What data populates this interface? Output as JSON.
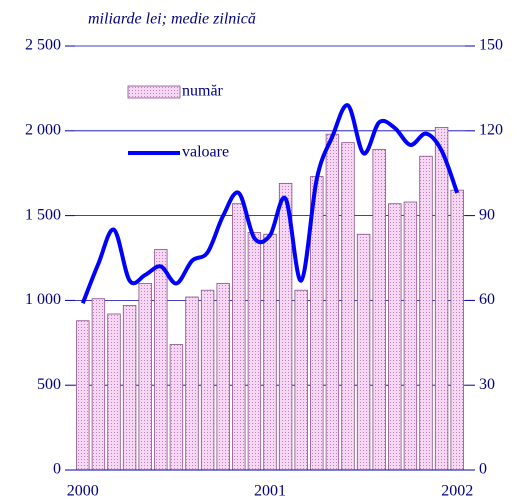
{
  "chart_data": {
    "type": "bar",
    "subtitle": "miliarde lei; medie zilnică",
    "categories": [
      "2000",
      null,
      null,
      null,
      null,
      null,
      null,
      null,
      null,
      null,
      null,
      null,
      "2001",
      null,
      null,
      null,
      null,
      null,
      null,
      null,
      null,
      null,
      null,
      null,
      "2002"
    ],
    "series": [
      {
        "name": "număr",
        "color": "#f2c6f0",
        "values": [
          880,
          1010,
          920,
          970,
          1100,
          1300,
          740,
          1020,
          1060,
          1100,
          1570,
          1400,
          1390,
          1690,
          1060,
          1730,
          1980,
          1930,
          1390,
          1890,
          1570,
          1580,
          1850,
          2020,
          1650
        ]
      },
      {
        "name": "valoare",
        "color": "#0000ff",
        "type": "line",
        "axis": "y2",
        "values": [
          59,
          73,
          85,
          67,
          69,
          72,
          66,
          74,
          77,
          90,
          98,
          82,
          83,
          96,
          67,
          103,
          118,
          129,
          112,
          123,
          121,
          115,
          119,
          113,
          98
        ]
      }
    ],
    "ylim": [
      0,
      2500
    ],
    "yticks": [
      0,
      500,
      {
        "value": 1000,
        "label": "1 000"
      },
      {
        "value": 1500,
        "label": "1 500"
      },
      {
        "value": 2000,
        "label": "2 000"
      },
      {
        "value": 2500,
        "label": "2 500"
      }
    ],
    "y2lim": [
      0,
      150
    ],
    "y2ticks": [
      0,
      30,
      60,
      90,
      120,
      150
    ],
    "grid": true
  }
}
